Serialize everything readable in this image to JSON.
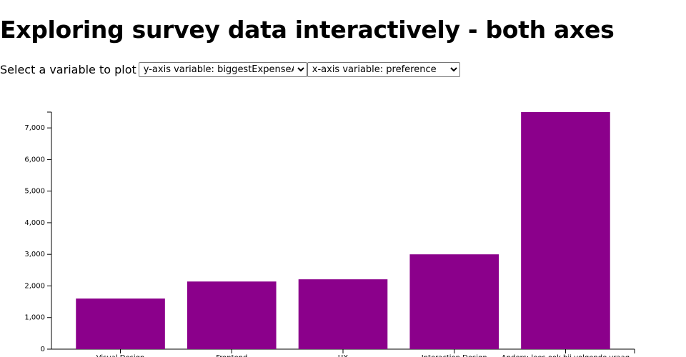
{
  "page": {
    "title": "Exploring survey data interactively - both axes",
    "select_label": "Select a variable to plot",
    "y_select": "y-axis variable: biggestExpenseAvg",
    "x_select": "x-axis variable: preference"
  },
  "chart_data": {
    "type": "bar",
    "categories": [
      "Visual Design",
      "Frontend",
      "UX",
      "Interaction Design",
      "Anders: lees ook bij volgende vraag"
    ],
    "values": [
      1600,
      2140,
      2210,
      3000,
      7500
    ],
    "color": "#8b008b",
    "ylim": [
      0,
      7500
    ],
    "yticks": [
      0,
      {
        "value": 1000,
        "label": "1,000"
      },
      {
        "value": 2000,
        "label": "2,000"
      },
      {
        "value": 3000,
        "label": "3,000"
      },
      {
        "value": 4000,
        "label": "4,000"
      },
      {
        "value": 5000,
        "label": "5,000"
      },
      {
        "value": 6000,
        "label": "6,000"
      },
      {
        "value": 7000,
        "label": "7,000"
      }
    ]
  }
}
